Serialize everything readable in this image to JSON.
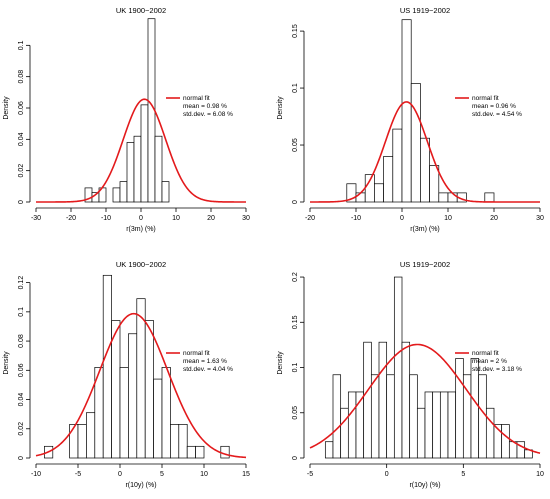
{
  "chart_data": [
    {
      "type": "histogram",
      "title": "UK 1900−2002",
      "xlabel": "r(3m) (%)",
      "ylabel": "Density",
      "xlim": [
        -30,
        30
      ],
      "ylim": [
        0,
        0.12
      ],
      "xticks": [
        -30,
        -20,
        -10,
        0,
        10,
        20,
        30
      ],
      "yticks": [
        0,
        0.02,
        0.04,
        0.06,
        0.08,
        0.1
      ],
      "bins": [
        {
          "x0": -16,
          "x1": -14,
          "density": 0.009
        },
        {
          "x0": -14,
          "x1": -12,
          "density": 0.006
        },
        {
          "x0": -12,
          "x1": -10,
          "density": 0.009
        },
        {
          "x0": -10,
          "x1": -8,
          "density": 0.0
        },
        {
          "x0": -8,
          "x1": -6,
          "density": 0.009
        },
        {
          "x0": -6,
          "x1": -4,
          "density": 0.013
        },
        {
          "x0": -4,
          "x1": -2,
          "density": 0.038
        },
        {
          "x0": -2,
          "x1": 0,
          "density": 0.042
        },
        {
          "x0": 0,
          "x1": 2,
          "density": 0.062
        },
        {
          "x0": 2,
          "x1": 4,
          "density": 0.117
        },
        {
          "x0": 4,
          "x1": 6,
          "density": 0.042
        },
        {
          "x0": 6,
          "x1": 8,
          "density": 0.013
        }
      ],
      "fit": {
        "mean": 0.98,
        "sd": 6.08
      },
      "legend": {
        "line1": "normal fit",
        "line2": "mean = 0.98 %",
        "line3": "std.dev. = 6.08 %"
      }
    },
    {
      "type": "histogram",
      "title": "US 1919−2002",
      "xlabel": "r(3m) (%)",
      "ylabel": "Density",
      "xlim": [
        -20,
        30
      ],
      "ylim": [
        0,
        0.165
      ],
      "xticks": [
        -20,
        -10,
        0,
        10,
        20,
        30
      ],
      "yticks": [
        0,
        0.05,
        0.1,
        0.15
      ],
      "bins": [
        {
          "x0": -12,
          "x1": -10,
          "density": 0.016
        },
        {
          "x0": -10,
          "x1": -8,
          "density": 0.008
        },
        {
          "x0": -8,
          "x1": -6,
          "density": 0.024
        },
        {
          "x0": -6,
          "x1": -4,
          "density": 0.016
        },
        {
          "x0": -4,
          "x1": -2,
          "density": 0.04
        },
        {
          "x0": -2,
          "x1": 0,
          "density": 0.064
        },
        {
          "x0": 0,
          "x1": 2,
          "density": 0.16
        },
        {
          "x0": 2,
          "x1": 4,
          "density": 0.104
        },
        {
          "x0": 4,
          "x1": 6,
          "density": 0.056
        },
        {
          "x0": 6,
          "x1": 8,
          "density": 0.032
        },
        {
          "x0": 8,
          "x1": 10,
          "density": 0.008
        },
        {
          "x0": 10,
          "x1": 12,
          "density": 0.008
        },
        {
          "x0": 12,
          "x1": 14,
          "density": 0.008
        },
        {
          "x0": 14,
          "x1": 16,
          "density": 0.0
        },
        {
          "x0": 16,
          "x1": 18,
          "density": 0.0
        },
        {
          "x0": 18,
          "x1": 20,
          "density": 0.008
        }
      ],
      "fit": {
        "mean": 0.96,
        "sd": 4.54
      },
      "legend": {
        "line1": "normal fit",
        "line2": "mean = 0.96 %",
        "line3": "std.dev. = 4.54 %"
      }
    },
    {
      "type": "histogram",
      "title": "UK 1900−2002",
      "xlabel": "r(10y) (%)",
      "ylabel": "Density",
      "xlim": [
        -10,
        15
      ],
      "ylim": [
        0,
        0.13
      ],
      "xticks": [
        -10,
        -5,
        0,
        5,
        10,
        15
      ],
      "yticks": [
        0,
        0.02,
        0.04,
        0.06,
        0.08,
        0.1,
        0.12
      ],
      "bins": [
        {
          "x0": -9,
          "x1": -8,
          "density": 0.008
        },
        {
          "x0": -8,
          "x1": -7,
          "density": 0.0
        },
        {
          "x0": -7,
          "x1": -6,
          "density": 0.0
        },
        {
          "x0": -6,
          "x1": -5,
          "density": 0.023
        },
        {
          "x0": -5,
          "x1": -4,
          "density": 0.023
        },
        {
          "x0": -4,
          "x1": -3,
          "density": 0.031
        },
        {
          "x0": -3,
          "x1": -2,
          "density": 0.062
        },
        {
          "x0": -2,
          "x1": -1,
          "density": 0.125
        },
        {
          "x0": -1,
          "x1": 0,
          "density": 0.094
        },
        {
          "x0": 0,
          "x1": 1,
          "density": 0.062
        },
        {
          "x0": 1,
          "x1": 2,
          "density": 0.085
        },
        {
          "x0": 2,
          "x1": 3,
          "density": 0.109
        },
        {
          "x0": 3,
          "x1": 4,
          "density": 0.094
        },
        {
          "x0": 4,
          "x1": 5,
          "density": 0.054
        },
        {
          "x0": 5,
          "x1": 6,
          "density": 0.062
        },
        {
          "x0": 6,
          "x1": 7,
          "density": 0.023
        },
        {
          "x0": 7,
          "x1": 8,
          "density": 0.023
        },
        {
          "x0": 8,
          "x1": 9,
          "density": 0.008
        },
        {
          "x0": 9,
          "x1": 10,
          "density": 0.008
        },
        {
          "x0": 10,
          "x1": 11,
          "density": 0.0
        },
        {
          "x0": 11,
          "x1": 12,
          "density": 0.0
        },
        {
          "x0": 12,
          "x1": 13,
          "density": 0.008
        }
      ],
      "fit": {
        "mean": 1.63,
        "sd": 4.04
      },
      "legend": {
        "line1": "normal fit",
        "line2": "mean = 1.63 %",
        "line3": "std.dev. = 4.04 %"
      }
    },
    {
      "type": "histogram",
      "title": "US 1919−2002",
      "xlabel": "r(10y) (%)",
      "ylabel": "Density",
      "xlim": [
        -5,
        10
      ],
      "ylim": [
        0,
        0.21
      ],
      "xticks": [
        -5,
        0,
        5,
        10
      ],
      "yticks": [
        0,
        0.05,
        0.1,
        0.15,
        0.2
      ],
      "bins": [
        {
          "x0": -4,
          "x1": -3.5,
          "density": 0.018
        },
        {
          "x0": -3.5,
          "x1": -3,
          "density": 0.092
        },
        {
          "x0": -3,
          "x1": -2.5,
          "density": 0.055
        },
        {
          "x0": -2.5,
          "x1": -2,
          "density": 0.073
        },
        {
          "x0": -2,
          "x1": -1.5,
          "density": 0.073
        },
        {
          "x0": -1.5,
          "x1": -1,
          "density": 0.128
        },
        {
          "x0": -1,
          "x1": -0.5,
          "density": 0.092
        },
        {
          "x0": -0.5,
          "x1": 0,
          "density": 0.128
        },
        {
          "x0": 0,
          "x1": 0.5,
          "density": 0.092
        },
        {
          "x0": 0.5,
          "x1": 1,
          "density": 0.2
        },
        {
          "x0": 1,
          "x1": 1.5,
          "density": 0.128
        },
        {
          "x0": 1.5,
          "x1": 2,
          "density": 0.092
        },
        {
          "x0": 2,
          "x1": 2.5,
          "density": 0.055
        },
        {
          "x0": 2.5,
          "x1": 3,
          "density": 0.073
        },
        {
          "x0": 3,
          "x1": 3.5,
          "density": 0.073
        },
        {
          "x0": 3.5,
          "x1": 4,
          "density": 0.073
        },
        {
          "x0": 4,
          "x1": 4.5,
          "density": 0.073
        },
        {
          "x0": 4.5,
          "x1": 5,
          "density": 0.11
        },
        {
          "x0": 5,
          "x1": 5.5,
          "density": 0.092
        },
        {
          "x0": 5.5,
          "x1": 6,
          "density": 0.11
        },
        {
          "x0": 6,
          "x1": 6.5,
          "density": 0.092
        },
        {
          "x0": 6.5,
          "x1": 7,
          "density": 0.055
        },
        {
          "x0": 7,
          "x1": 7.5,
          "density": 0.037
        },
        {
          "x0": 7.5,
          "x1": 8,
          "density": 0.037
        },
        {
          "x0": 8,
          "x1": 8.5,
          "density": 0.018
        },
        {
          "x0": 8.5,
          "x1": 9,
          "density": 0.018
        },
        {
          "x0": 9,
          "x1": 9.5,
          "density": 0.009
        }
      ],
      "fit": {
        "mean": 2,
        "sd": 3.18
      },
      "legend": {
        "line1": "normal fit",
        "line2": "mean = 2 %",
        "line3": "std.dev. = 3.18 %"
      }
    }
  ]
}
